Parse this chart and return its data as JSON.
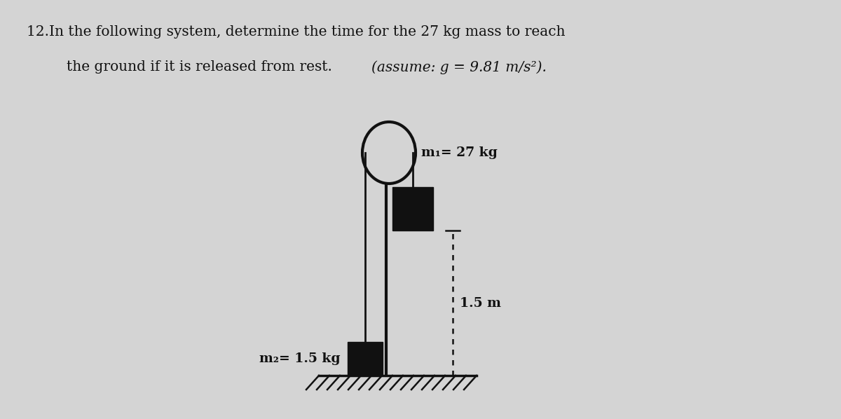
{
  "background_color": "#d4d4d4",
  "title_line1": "12.In the following system, determine the time for the 27 kg mass to reach",
  "title_line2_normal": "the ground if it is released from rest. ",
  "title_line2_italic": "(assume: g = 9.81 m/s²).",
  "m1_label": "m₁= 27 kg",
  "m2_label": "m₂= 1.5 kg",
  "dist_label": "1.5 m",
  "text_color": "#111111",
  "diagram_color": "#111111",
  "fig_width": 12.0,
  "fig_height": 5.98
}
